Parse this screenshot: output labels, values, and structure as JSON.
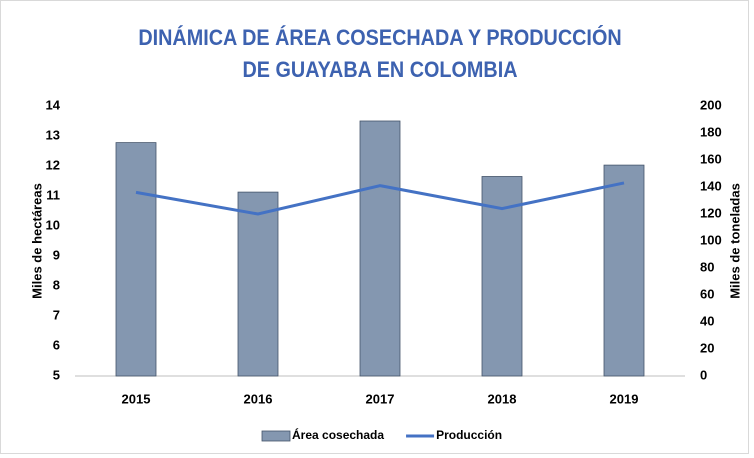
{
  "chart_data": {
    "type": "bar",
    "title": "DINÁMICA DE ÁREA COSECHADA Y PRODUCCIÓN DE GUAYABA EN COLOMBIA",
    "categories": [
      "2015",
      "2016",
      "2017",
      "2018",
      "2019"
    ],
    "series": [
      {
        "name": "Área cosechada",
        "type": "bar",
        "color": "#8497b0",
        "values": [
          12.78,
          11.13,
          13.5,
          11.65,
          12.03
        ]
      },
      {
        "name": "Producción",
        "type": "line",
        "axis": "y2",
        "color": "#4472c4",
        "values": [
          136,
          120,
          141,
          124,
          143
        ]
      }
    ],
    "ylabel": "Miles de hectáreas",
    "y2label": "Miles de toneladas",
    "ylim": [
      5,
      14
    ],
    "yticks": [
      5,
      6,
      7,
      8,
      9,
      10,
      11,
      12,
      13,
      14
    ],
    "y2lim": [
      0,
      200
    ],
    "y2ticks": [
      0,
      20,
      40,
      60,
      80,
      100,
      120,
      140,
      160,
      180,
      200
    ],
    "legend": "bottom"
  }
}
